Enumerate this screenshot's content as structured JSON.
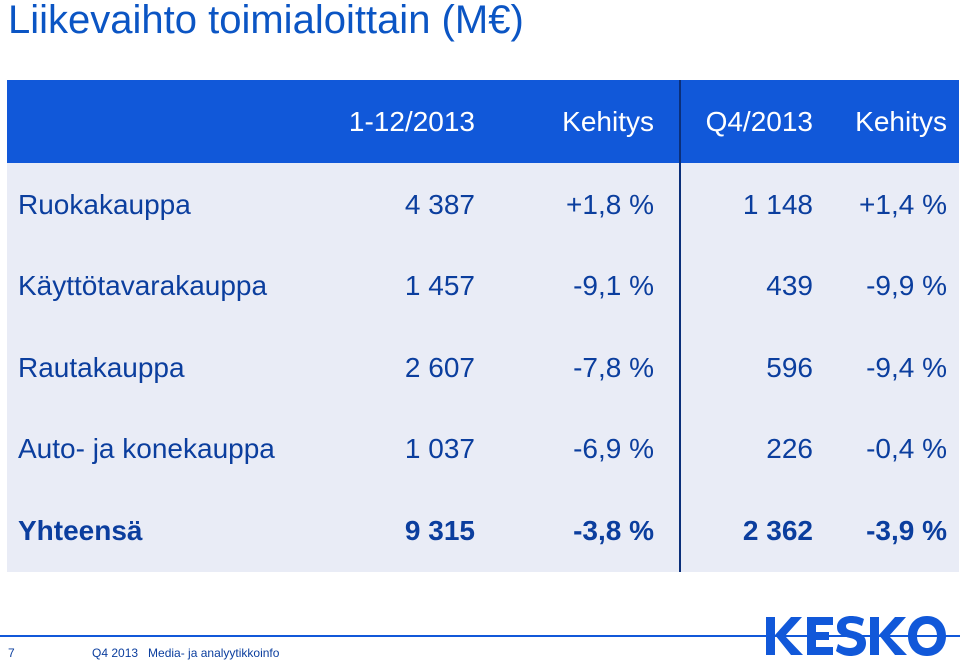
{
  "title": "Liikevaihto toimialoittain (M€)",
  "header": {
    "col1": "1-12/2013",
    "col2": "Kehitys",
    "col3": "Q4/2013",
    "col4": "Kehitys"
  },
  "rows": [
    {
      "label": "Ruokakauppa",
      "v1": "4 387",
      "v2": "+1,8 %",
      "v3": "1 148",
      "v4": "+1,4 %"
    },
    {
      "label": "Käyttötavarakauppa",
      "v1": "1 457",
      "v2": "-9,1 %",
      "v3": "439",
      "v4": "-9,9 %"
    },
    {
      "label": "Rautakauppa",
      "v1": "2 607",
      "v2": "-7,8 %",
      "v3": "596",
      "v4": "-9,4 %"
    },
    {
      "label": "Auto- ja konekauppa",
      "v1": "1 037",
      "v2": "-6,9 %",
      "v3": "226",
      "v4": "-0,4 %"
    },
    {
      "label": "Yhteensä",
      "v1": "9 315",
      "v2": "-3,8 %",
      "v3": "2 362",
      "v4": "-3,9 %"
    }
  ],
  "footer": {
    "page_number": "7",
    "text": "Q4 2013   Media- ja analyytikkoinfo"
  },
  "logo_text": "KESKO",
  "colors": {
    "brand_blue": "#1158d9",
    "text_blue": "#0b3e9e",
    "table_bg": "#e9ecf6"
  }
}
